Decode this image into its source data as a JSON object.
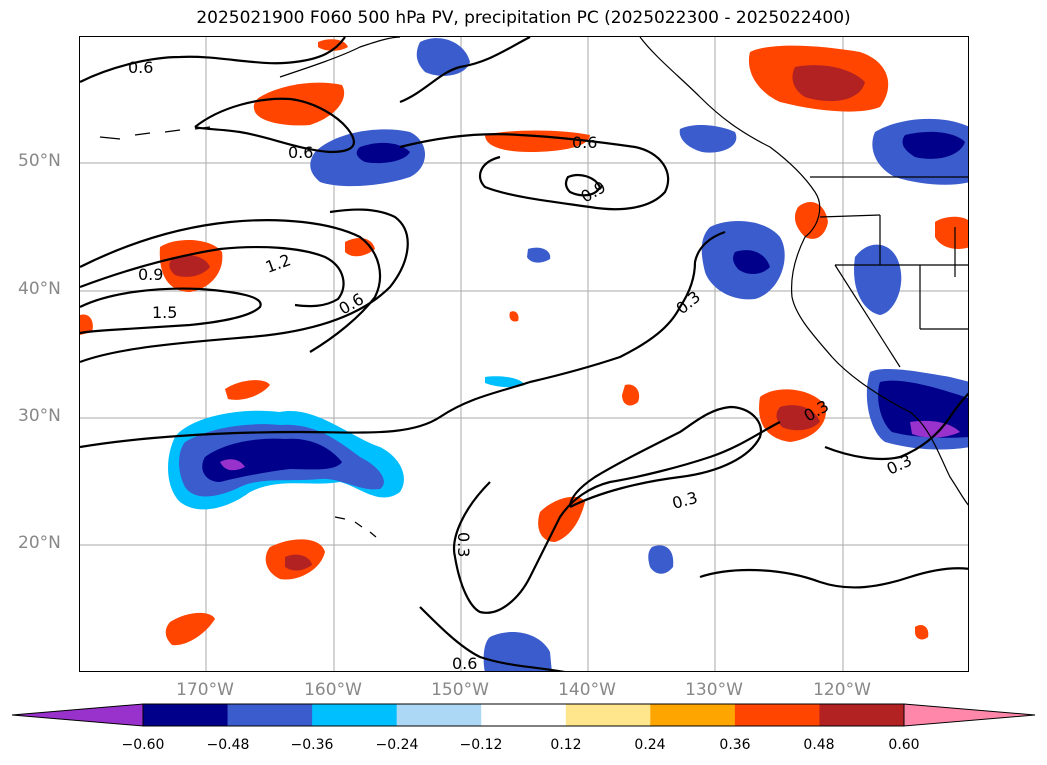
{
  "title": "2025021900 F060 500 hPa PV, precipitation PC (2025022300 - 2025022400)",
  "lat_labels": [
    "50°N",
    "40°N",
    "30°N",
    "20°N"
  ],
  "lon_labels": [
    "170°W",
    "160°W",
    "150°W",
    "140°W",
    "130°W",
    "120°W"
  ],
  "contour_labels": [
    "0.6",
    "0.6",
    "0.6",
    "0.9",
    "0.9",
    "1.2",
    "1.5",
    "0.6",
    "0.3",
    "0.3",
    "0.3",
    "0.3",
    "0.3",
    "0.6"
  ],
  "colorbar": {
    "ticks": [
      "−0.60",
      "−0.48",
      "−0.36",
      "−0.24",
      "−0.12",
      "0.12",
      "0.24",
      "0.36",
      "0.48",
      "0.60"
    ],
    "colors": [
      "#9932cc",
      "#00008b",
      "#3a5ccc",
      "#00bfff",
      "#add8f5",
      "#ffffff",
      "#ffe68c",
      "#ffa500",
      "#ff4500",
      "#b22222",
      "#ff88aa"
    ]
  },
  "colors": {
    "neg_strong": "#00008b",
    "neg_mid": "#3a5ccc",
    "neg_light": "#00bfff",
    "pos_mid": "#ff4500",
    "pos_strong": "#b22222",
    "pos_light": "#ffa500",
    "purple": "#9932cc",
    "grid": "#aaaaaa"
  }
}
